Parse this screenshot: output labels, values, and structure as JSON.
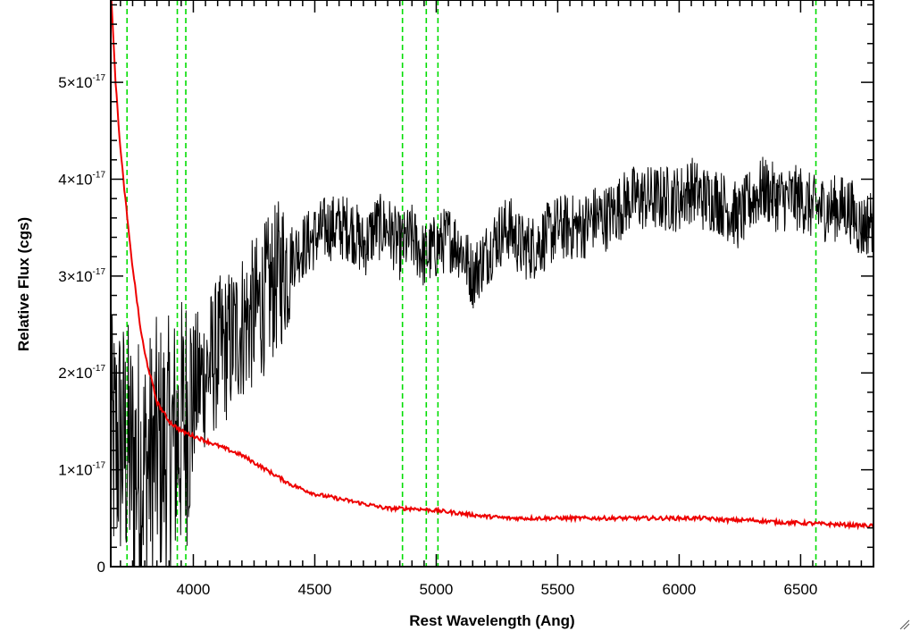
{
  "chart_data": {
    "type": "line",
    "title": "",
    "xlabel": "Rest Wavelength (Ang)",
    "ylabel": "Relative Flux (cgs)",
    "xlim": [
      3660,
      6800
    ],
    "ylim": [
      0,
      5.85e-17
    ],
    "grid": false,
    "legend": "none",
    "x_ticks": [
      {
        "value": 4000,
        "label": "4000"
      },
      {
        "value": 4500,
        "label": "4500"
      },
      {
        "value": 5000,
        "label": "5000"
      },
      {
        "value": 5500,
        "label": "5500"
      },
      {
        "value": 6000,
        "label": "6000"
      },
      {
        "value": 6500,
        "label": "6500"
      }
    ],
    "y_ticks": [
      {
        "value": 0,
        "mantissa": "0",
        "exponent": ""
      },
      {
        "value": 1e-17,
        "mantissa": "1×10",
        "exponent": "-17"
      },
      {
        "value": 2e-17,
        "mantissa": "2×10",
        "exponent": "-17"
      },
      {
        "value": 3e-17,
        "mantissa": "3×10",
        "exponent": "-17"
      },
      {
        "value": 4e-17,
        "mantissa": "4×10",
        "exponent": "-17"
      },
      {
        "value": 5e-17,
        "mantissa": "5×10",
        "exponent": "-17"
      }
    ],
    "reference_lines": {
      "color": "#00dd00",
      "style": "dashed",
      "x": [
        3727,
        3934,
        3969,
        4861,
        4959,
        5007,
        6563
      ]
    },
    "series": [
      {
        "color": "#000000",
        "style": "noisy spectrum",
        "x": [
          3660,
          3700,
          3750,
          3800,
          3850,
          3900,
          3950,
          4000,
          4050,
          4100,
          4150,
          4200,
          4250,
          4300,
          4350,
          4400,
          4450,
          4500,
          4550,
          4600,
          4650,
          4700,
          4750,
          4800,
          4850,
          4900,
          4950,
          5000,
          5050,
          5100,
          5150,
          5200,
          5250,
          5300,
          5350,
          5400,
          5450,
          5500,
          5550,
          5600,
          5650,
          5700,
          5750,
          5800,
          5850,
          5900,
          5950,
          6000,
          6050,
          6100,
          6150,
          6200,
          6250,
          6300,
          6350,
          6400,
          6450,
          6500,
          6550,
          6600,
          6650,
          6700,
          6750,
          6800
        ],
        "y": [
          1.2e-17,
          1.3e-17,
          1.1e-17,
          1e-17,
          1.2e-17,
          1.2e-17,
          1.4e-17,
          1.8e-17,
          2e-17,
          2.2e-17,
          2.3e-17,
          2.5e-17,
          2.6e-17,
          2.8e-17,
          3e-17,
          3.2e-17,
          3.3e-17,
          3.4e-17,
          3.5e-17,
          3.5e-17,
          3.5e-17,
          3.3e-17,
          3.5e-17,
          3.5e-17,
          3.3e-17,
          3.4e-17,
          3.2e-17,
          3.3e-17,
          3.4e-17,
          3.3e-17,
          3e-17,
          3.2e-17,
          3.4e-17,
          3.5e-17,
          3.3e-17,
          3.3e-17,
          3.4e-17,
          3.5e-17,
          3.5e-17,
          3.5e-17,
          3.6e-17,
          3.6e-17,
          3.7e-17,
          3.8e-17,
          3.8e-17,
          3.8e-17,
          3.8e-17,
          3.8e-17,
          3.9e-17,
          3.8e-17,
          3.8e-17,
          3.7e-17,
          3.6e-17,
          3.8e-17,
          3.9e-17,
          3.8e-17,
          3.8e-17,
          3.8e-17,
          3.7e-17,
          3.7e-17,
          3.7e-17,
          3.7e-17,
          3.5e-17,
          3.6e-17
        ]
      },
      {
        "color": "#ee0000",
        "style": "smooth spectrum",
        "x": [
          3660,
          3680,
          3700,
          3720,
          3740,
          3760,
          3780,
          3800,
          3850,
          3900,
          3950,
          4000,
          4050,
          4100,
          4150,
          4200,
          4300,
          4400,
          4500,
          4600,
          4700,
          4800,
          4900,
          5000,
          5100,
          5200,
          5300,
          5400,
          5500,
          5600,
          5700,
          5800,
          5900,
          6000,
          6100,
          6200,
          6300,
          6400,
          6500,
          6600,
          6700,
          6800
        ],
        "y": [
          6e-17,
          5e-17,
          4.3e-17,
          3.8e-17,
          3.3e-17,
          2.9e-17,
          2.5e-17,
          2.2e-17,
          1.7e-17,
          1.5e-17,
          1.4e-17,
          1.35e-17,
          1.3e-17,
          1.25e-17,
          1.2e-17,
          1.15e-17,
          1e-17,
          8.5e-18,
          7.5e-18,
          7e-18,
          6.5e-18,
          6e-18,
          6e-18,
          5.8e-18,
          5.5e-18,
          5.2e-18,
          5e-18,
          5e-18,
          5e-18,
          5e-18,
          5e-18,
          5e-18,
          5e-18,
          5e-18,
          5e-18,
          4.8e-18,
          4.8e-18,
          4.6e-18,
          4.5e-18,
          4.4e-18,
          4.3e-18,
          4.2e-18
        ]
      }
    ]
  }
}
